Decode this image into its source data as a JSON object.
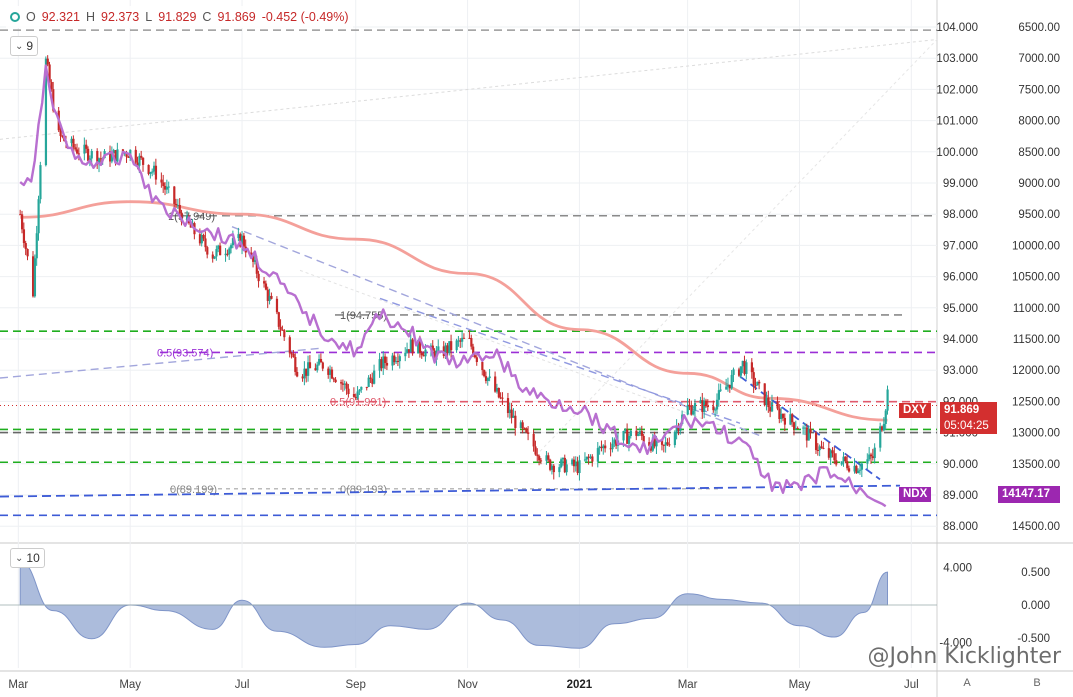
{
  "legend": {
    "open_label": "O",
    "open": "92.321",
    "high_label": "H",
    "high": "92.373",
    "low_label": "L",
    "low": "91.829",
    "close_label": "C",
    "close": "91.869",
    "change": "-0.452 (-0.49%)"
  },
  "ma_input": "9",
  "osc_input": "10",
  "price_tags": {
    "dxy_label": "DXY",
    "dxy_value": "91.869",
    "countdown": "05:04:25",
    "ndx_label": "NDX",
    "ndx_value": "14147.17"
  },
  "watermark": "@John Kicklighter",
  "axis_buttons": {
    "auto": "A",
    "log": "B"
  },
  "colors": {
    "dxy_tag": "#d32f2f",
    "ndx_tag": "#9c27b0",
    "candle_up": "#26a69a",
    "candle_down": "#c62828",
    "sma": "#f4a09a",
    "ndx_line": "#b86fd0",
    "fib_green": "#1fae1f",
    "fib_purple": "#9b2fd6",
    "fib_red": "#e05a6c",
    "fib_gray": "#8a8a8a",
    "trend_blue": "#3d5bd6",
    "osc_fill": "#9db0d6"
  },
  "chart_data": [
    {
      "type": "line",
      "series": [
        {
          "name": "DXY",
          "x": [
            "2020-03-02",
            "2020-03-09",
            "2020-03-16",
            "2020-03-23",
            "2020-04-01",
            "2020-04-15",
            "2020-05-01",
            "2020-05-15",
            "2020-06-01",
            "2020-06-15",
            "2020-07-01",
            "2020-07-15",
            "2020-08-01",
            "2020-08-15",
            "2020-09-01",
            "2020-09-15",
            "2020-10-01",
            "2020-10-15",
            "2020-11-01",
            "2020-11-15",
            "2020-12-01",
            "2020-12-15",
            "2021-01-01",
            "2021-01-15",
            "2021-02-01",
            "2021-02-15",
            "2021-03-01",
            "2021-03-15",
            "2021-03-31",
            "2021-04-15",
            "2021-05-01",
            "2021-05-15",
            "2021-06-01",
            "2021-06-10",
            "2021-06-16",
            "2021-06-18"
          ],
          "values": [
            98.0,
            95.5,
            102.9,
            100.5,
            100.1,
            99.8,
            100.0,
            99.3,
            97.7,
            96.7,
            97.2,
            95.4,
            92.9,
            93.2,
            92.1,
            93.2,
            93.8,
            93.5,
            94.0,
            92.4,
            91.0,
            90.0,
            89.9,
            90.6,
            91.0,
            90.4,
            91.8,
            91.9,
            93.2,
            91.8,
            91.2,
            90.3,
            89.9,
            90.2,
            91.5,
            92.3
          ]
        },
        {
          "name": "NDX",
          "x": [
            "2020-03-02",
            "2020-03-09",
            "2020-03-16",
            "2020-03-23",
            "2020-04-01",
            "2020-04-15",
            "2020-05-01",
            "2020-05-15",
            "2020-06-01",
            "2020-06-15",
            "2020-07-01",
            "2020-07-15",
            "2020-08-01",
            "2020-08-15",
            "2020-09-01",
            "2020-09-15",
            "2020-10-01",
            "2020-10-15",
            "2020-11-01",
            "2020-11-15",
            "2020-12-01",
            "2020-12-15",
            "2021-01-01",
            "2021-01-15",
            "2021-02-01",
            "2021-02-15",
            "2021-03-01",
            "2021-03-15",
            "2021-03-31",
            "2021-04-15",
            "2021-05-01",
            "2021-05-15",
            "2021-06-01",
            "2021-06-10",
            "2021-06-16",
            "2021-06-18"
          ],
          "values": [
            9000,
            9000,
            7100,
            8100,
            8600,
            8700,
            8500,
            9300,
            9600,
            9800,
            10000,
            10400,
            11000,
            11400,
            11700,
            11100,
            11400,
            11800,
            11900,
            11700,
            12300,
            12500,
            12600,
            12900,
            13300,
            13100,
            12800,
            12900,
            13200,
            13800,
            13900,
            13600,
            13900,
            14000,
            14100,
            14147
          ]
        },
        {
          "name": "200 SMA",
          "x": [
            "2020-03-02",
            "2020-05-01",
            "2020-07-01",
            "2020-09-01",
            "2020-11-01",
            "2021-01-01",
            "2021-03-01",
            "2021-04-15",
            "2021-06-18"
          ],
          "values": [
            97.9,
            98.4,
            98.0,
            97.2,
            96.1,
            94.3,
            92.9,
            92.1,
            91.4
          ]
        }
      ],
      "fib_levels": [
        "1(97.949)",
        "0.5(93.574)",
        "1(94.755)",
        "0.5(91.991)",
        "0(89.199)",
        "0(89.193)"
      ],
      "xticks": [
        "Mar",
        "May",
        "Jul",
        "Sep",
        "Nov",
        "2021",
        "Mar",
        "May",
        "Jul"
      ],
      "yticks_left_scale": [
        "104.000",
        "103.000",
        "102.000",
        "101.000",
        "100.000",
        "99.000",
        "98.000",
        "97.000",
        "96.000",
        "95.000",
        "94.000",
        "93.000",
        "92.000",
        "91.000",
        "90.000",
        "89.000",
        "88.000"
      ],
      "yticks_right_scale": [
        "6500.00",
        "7000.00",
        "7500.00",
        "8000.00",
        "8500.00",
        "9000.00",
        "9500.00",
        "10000.00",
        "10500.00",
        "11000.00",
        "11500.00",
        "12000.00",
        "12500.00",
        "13000.00",
        "13500.00",
        "14000.00",
        "14500.00"
      ],
      "ylim_left": [
        87.9,
        104.4
      ],
      "ylim_right": [
        14850,
        6420
      ],
      "grid": true
    },
    {
      "type": "area",
      "series": [
        {
          "name": "",
          "x": [
            "2020-03-02",
            "2020-03-20",
            "2020-04-10",
            "2020-05-01",
            "2020-05-20",
            "2020-06-15",
            "2020-07-01",
            "2020-07-20",
            "2020-08-15",
            "2020-09-01",
            "2020-09-20",
            "2020-10-10",
            "2020-11-01",
            "2020-11-20",
            "2020-12-10",
            "2021-01-01",
            "2021-01-20",
            "2021-02-10",
            "2021-03-01",
            "2021-03-20",
            "2021-04-10",
            "2021-05-01",
            "2021-05-20",
            "2021-06-05",
            "2021-06-18"
          ],
          "values": [
            4.6,
            -0.6,
            -3.6,
            0.0,
            -0.6,
            -2.6,
            0.5,
            -2.8,
            -4.5,
            -4.2,
            -2.2,
            -2.6,
            0.2,
            -1.6,
            -4.3,
            -4.6,
            -2.0,
            -1.4,
            1.2,
            0.6,
            0.2,
            -2.2,
            -3.4,
            -0.8,
            3.5
          ]
        }
      ],
      "yticks_left_scale": [
        "4.000",
        "-4.000"
      ],
      "yticks_right_scale": [
        "0.500",
        "0.000",
        "-0.500"
      ],
      "ylim_left": [
        -4.8,
        4.8
      ]
    }
  ]
}
